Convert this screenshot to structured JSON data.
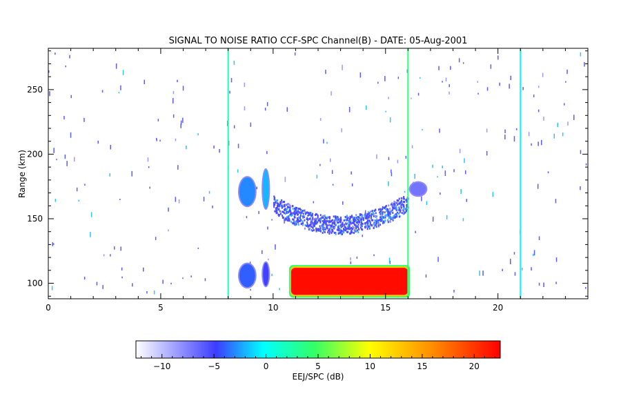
{
  "chart_data": {
    "type": "heatmap",
    "title": "SIGNAL TO NOISE RATIO CCF-SPC Channel(B) - DATE: 05-Aug-2001",
    "xlabel": "",
    "ylabel": "Range (km)",
    "xlim": [
      0,
      24
    ],
    "ylim": [
      88,
      282
    ],
    "xticks": [
      "0",
      "5",
      "10",
      "15",
      "20"
    ],
    "yticks": [
      "100",
      "150",
      "200",
      "250"
    ],
    "grid": false,
    "colorbar": {
      "label": "EEJ/SPC (dB)",
      "range": [
        -12.5,
        22.5
      ],
      "ticks": [
        "-10",
        "-5",
        "0",
        "5",
        "10",
        "15",
        "20"
      ],
      "colors": [
        "#ffffff",
        "#3c3cff",
        "#00ffff",
        "#ffff00",
        "#ff0000"
      ]
    },
    "regions": [
      {
        "kind": "strong-echo",
        "x": [
          10.8,
          16.0
        ],
        "y": [
          91,
          112
        ],
        "value_db": 22
      },
      {
        "kind": "upper-layer",
        "x": [
          10.0,
          16.0
        ],
        "y": [
          138,
          178
        ],
        "value_db": -6
      },
      {
        "kind": "echo-blob",
        "x": [
          8.5,
          9.2
        ],
        "y": [
          160,
          182
        ],
        "value_db": -3
      },
      {
        "kind": "echo-blob",
        "x": [
          9.55,
          9.8
        ],
        "y": [
          158,
          188
        ],
        "value_db": -2
      },
      {
        "kind": "echo-blob",
        "x": [
          8.5,
          9.2
        ],
        "y": [
          97,
          115
        ],
        "value_db": -4
      },
      {
        "kind": "echo-blob",
        "x": [
          9.55,
          9.8
        ],
        "y": [
          98,
          116
        ],
        "value_db": -5
      },
      {
        "kind": "echo-blob",
        "x": [
          16.1,
          16.8
        ],
        "y": [
          168,
          178
        ],
        "value_db": -7
      },
      {
        "kind": "vertical-streak",
        "x": 8.0,
        "value_db": 2
      },
      {
        "kind": "vertical-streak",
        "x": 16.0,
        "value_db": 4
      },
      {
        "kind": "vertical-streak",
        "x": 21.0,
        "value_db": 0
      }
    ]
  }
}
